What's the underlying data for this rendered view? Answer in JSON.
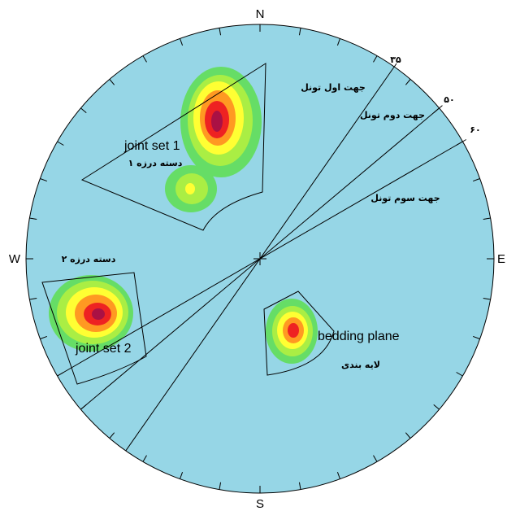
{
  "net": {
    "background": "#96d6e6",
    "compass": {
      "north": "N",
      "south": "S",
      "east": "E",
      "west": "W"
    }
  },
  "tunnel_directions": [
    {
      "azimuth": 35,
      "azimuth_label": "۳۵",
      "name": "جهت اول تونل"
    },
    {
      "azimuth": 50,
      "azimuth_label": "۵۰",
      "name": "جهت دوم تونل"
    },
    {
      "azimuth": 60,
      "azimuth_label": "۶۰",
      "name": "جهت سوم تونل"
    }
  ],
  "sets": {
    "joint_set_1": {
      "label_en": "joint set 1",
      "label_fa": "دسته درزه ۱"
    },
    "joint_set_2": {
      "label_en": "joint set 2",
      "label_fa": "دسته درزه ۲"
    },
    "bedding": {
      "label_en": "bedding plane",
      "label_fa": "لایه بندی"
    }
  },
  "contour_colors": [
    "#66dd66",
    "#aaee44",
    "#ffff33",
    "#ff9922",
    "#ee2222",
    "#aa1144"
  ]
}
